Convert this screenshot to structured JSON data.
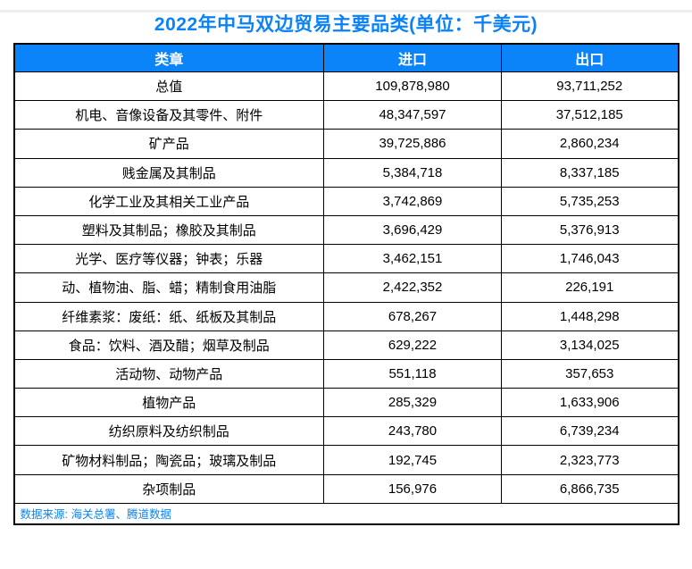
{
  "page": {
    "title": "2022年中马双边贸易主要品类(单位：千美元)",
    "source_note": "数据来源: 海关总署、腾道数据"
  },
  "colors": {
    "accent_blue": "#0A84F8",
    "title_blue": "#0A82F8",
    "border_black": "#000000",
    "header_text_white": "#FFFFFF",
    "top_strip_gray": "#EDEDED"
  },
  "chart_data": {
    "type": "table",
    "title": "2022年中马双边贸易主要品类(单位：千美元)",
    "unit": "千美元",
    "columns": [
      "类章",
      "进口",
      "出口"
    ],
    "rows": [
      [
        "总值",
        "109,878,980",
        "93,711,252"
      ],
      [
        "机电、音像设备及其零件、附件",
        "48,347,597",
        "37,512,185"
      ],
      [
        "矿产品",
        "39,725,886",
        "2,860,234"
      ],
      [
        "贱金属及其制品",
        "5,384,718",
        "8,337,185"
      ],
      [
        "化学工业及其相关工业产品",
        "3,742,869",
        "5,735,253"
      ],
      [
        "塑料及其制品；橡胶及其制品",
        "3,696,429",
        "5,376,913"
      ],
      [
        "光学、医疗等仪器；钟表；乐器",
        "3,462,151",
        "1,746,043"
      ],
      [
        "动、植物油、脂、蜡；精制食用油脂",
        "2,422,352",
        "226,191"
      ],
      [
        "纤维素浆：废纸：纸、纸板及其制品",
        "678,267",
        "1,448,298"
      ],
      [
        "食品：饮料、酒及醋；烟草及制品",
        "629,222",
        "3,134,025"
      ],
      [
        "活动物、动物产品",
        "551,118",
        "357,653"
      ],
      [
        "植物产品",
        "285,329",
        "1,633,906"
      ],
      [
        "纺织原料及纺织制品",
        "243,780",
        "6,739,234"
      ],
      [
        "矿物材料制品；陶瓷品；玻璃及制品",
        "192,745",
        "2,323,773"
      ],
      [
        "杂项制品",
        "156,976",
        "6,866,735"
      ]
    ],
    "source_note": "数据来源: 海关总署、腾道数据",
    "legend_position": "none",
    "grid": true
  }
}
